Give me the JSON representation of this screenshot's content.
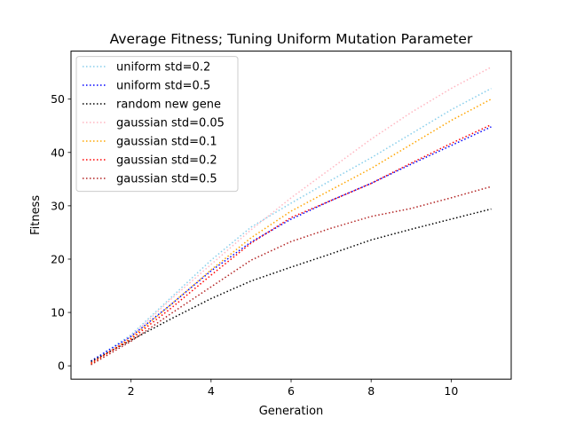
{
  "chart_data": {
    "type": "line",
    "title": "Average Fitness; Tuning Uniform Mutation Parameter",
    "xlabel": "Generation",
    "ylabel": "Fitness",
    "xlim": [
      0.5,
      11.5
    ],
    "ylim": [
      -2.5,
      59
    ],
    "xticks": [
      2,
      4,
      6,
      8,
      10
    ],
    "yticks": [
      0,
      10,
      20,
      30,
      40,
      50
    ],
    "grid": false,
    "legend_position": "top-left",
    "line_style": "dotted",
    "x": [
      1,
      2,
      3,
      4,
      5,
      6,
      7,
      8,
      9,
      10,
      11
    ],
    "series": [
      {
        "name": "uniform std=0.2",
        "color": "#87ceeb",
        "values": [
          0.8,
          5.8,
          12.8,
          19.8,
          26.0,
          30.5,
          34.8,
          39.0,
          43.5,
          48.0,
          52.0
        ]
      },
      {
        "name": "uniform std=0.5",
        "color": "#0000ff",
        "values": [
          0.9,
          5.5,
          11.5,
          17.8,
          23.2,
          27.5,
          31.0,
          34.2,
          37.8,
          41.3,
          44.8
        ]
      },
      {
        "name": "random new gene",
        "color": "#000000",
        "values": [
          0.8,
          4.8,
          8.8,
          12.6,
          15.9,
          18.5,
          21.0,
          23.6,
          25.6,
          27.5,
          29.4
        ]
      },
      {
        "name": "gaussian std=0.05",
        "color": "#ffb6c1",
        "values": [
          0.3,
          5.5,
          12.5,
          19.0,
          25.5,
          31.5,
          37.0,
          42.5,
          47.5,
          52.0,
          56.0
        ]
      },
      {
        "name": "gaussian std=0.1",
        "color": "#ffa500",
        "values": [
          0.4,
          5.2,
          11.5,
          18.0,
          24.0,
          29.0,
          33.0,
          37.0,
          41.5,
          46.0,
          50.0
        ]
      },
      {
        "name": "gaussian std=0.2",
        "color": "#ff0000",
        "values": [
          0.5,
          5.0,
          10.8,
          17.0,
          23.0,
          27.8,
          31.0,
          34.2,
          38.0,
          41.7,
          45.2
        ]
      },
      {
        "name": "gaussian std=0.5",
        "color": "#b22222",
        "values": [
          0.2,
          4.6,
          9.8,
          14.8,
          19.8,
          23.3,
          25.8,
          28.0,
          29.5,
          31.5,
          33.6
        ]
      }
    ]
  }
}
